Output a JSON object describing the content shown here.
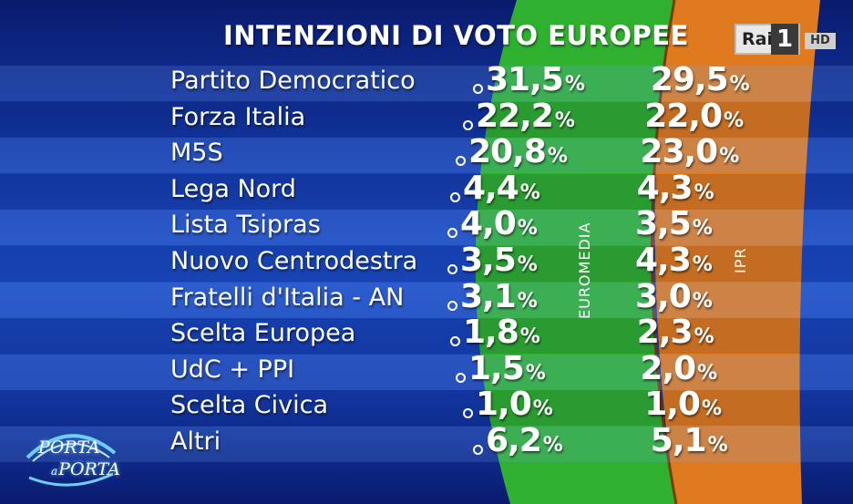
{
  "title": "INTENZIONI DI VOTO EUROPEE",
  "broadcaster": {
    "channel": "Rai",
    "number": "1",
    "badge": "HD"
  },
  "show": {
    "line1": "PORTA",
    "line2_small": "a",
    "line2": "PORTA"
  },
  "colors": {
    "euromedia_band": "#2fb02f",
    "ipr_band": "#e07a1e",
    "background": "#1740b5"
  },
  "percent_sign": "%",
  "chart_data": {
    "type": "table",
    "title": "INTENZIONI DI VOTO EUROPEE",
    "categories": [
      "Partito Democratico",
      "Forza Italia",
      "M5S",
      "Lega Nord",
      "Lista Tsipras",
      "Nuovo Centrodestra",
      "Fratelli d'Italia - AN",
      "Scelta Europea",
      "UdC + PPI",
      "Scelta Civica",
      "Altri"
    ],
    "series": [
      {
        "name": "EUROMEDIA",
        "display": [
          "31,5",
          "22,2",
          "20,8",
          "4,4",
          "4,0",
          "3,5",
          "3,1",
          "1,8",
          "1,5",
          "1,0",
          "6,2"
        ],
        "values": [
          31.5,
          22.2,
          20.8,
          4.4,
          4.0,
          3.5,
          3.1,
          1.8,
          1.5,
          1.0,
          6.2
        ]
      },
      {
        "name": "IPR",
        "display": [
          "29,5",
          "22,0",
          "23,0",
          "4,3",
          "3,5",
          "4,3",
          "3,0",
          "2,3",
          "2,0",
          "1,0",
          "5,1"
        ],
        "values": [
          29.5,
          22.0,
          23.0,
          4.3,
          3.5,
          4.3,
          3.0,
          2.3,
          2.0,
          1.0,
          5.1
        ]
      }
    ]
  }
}
